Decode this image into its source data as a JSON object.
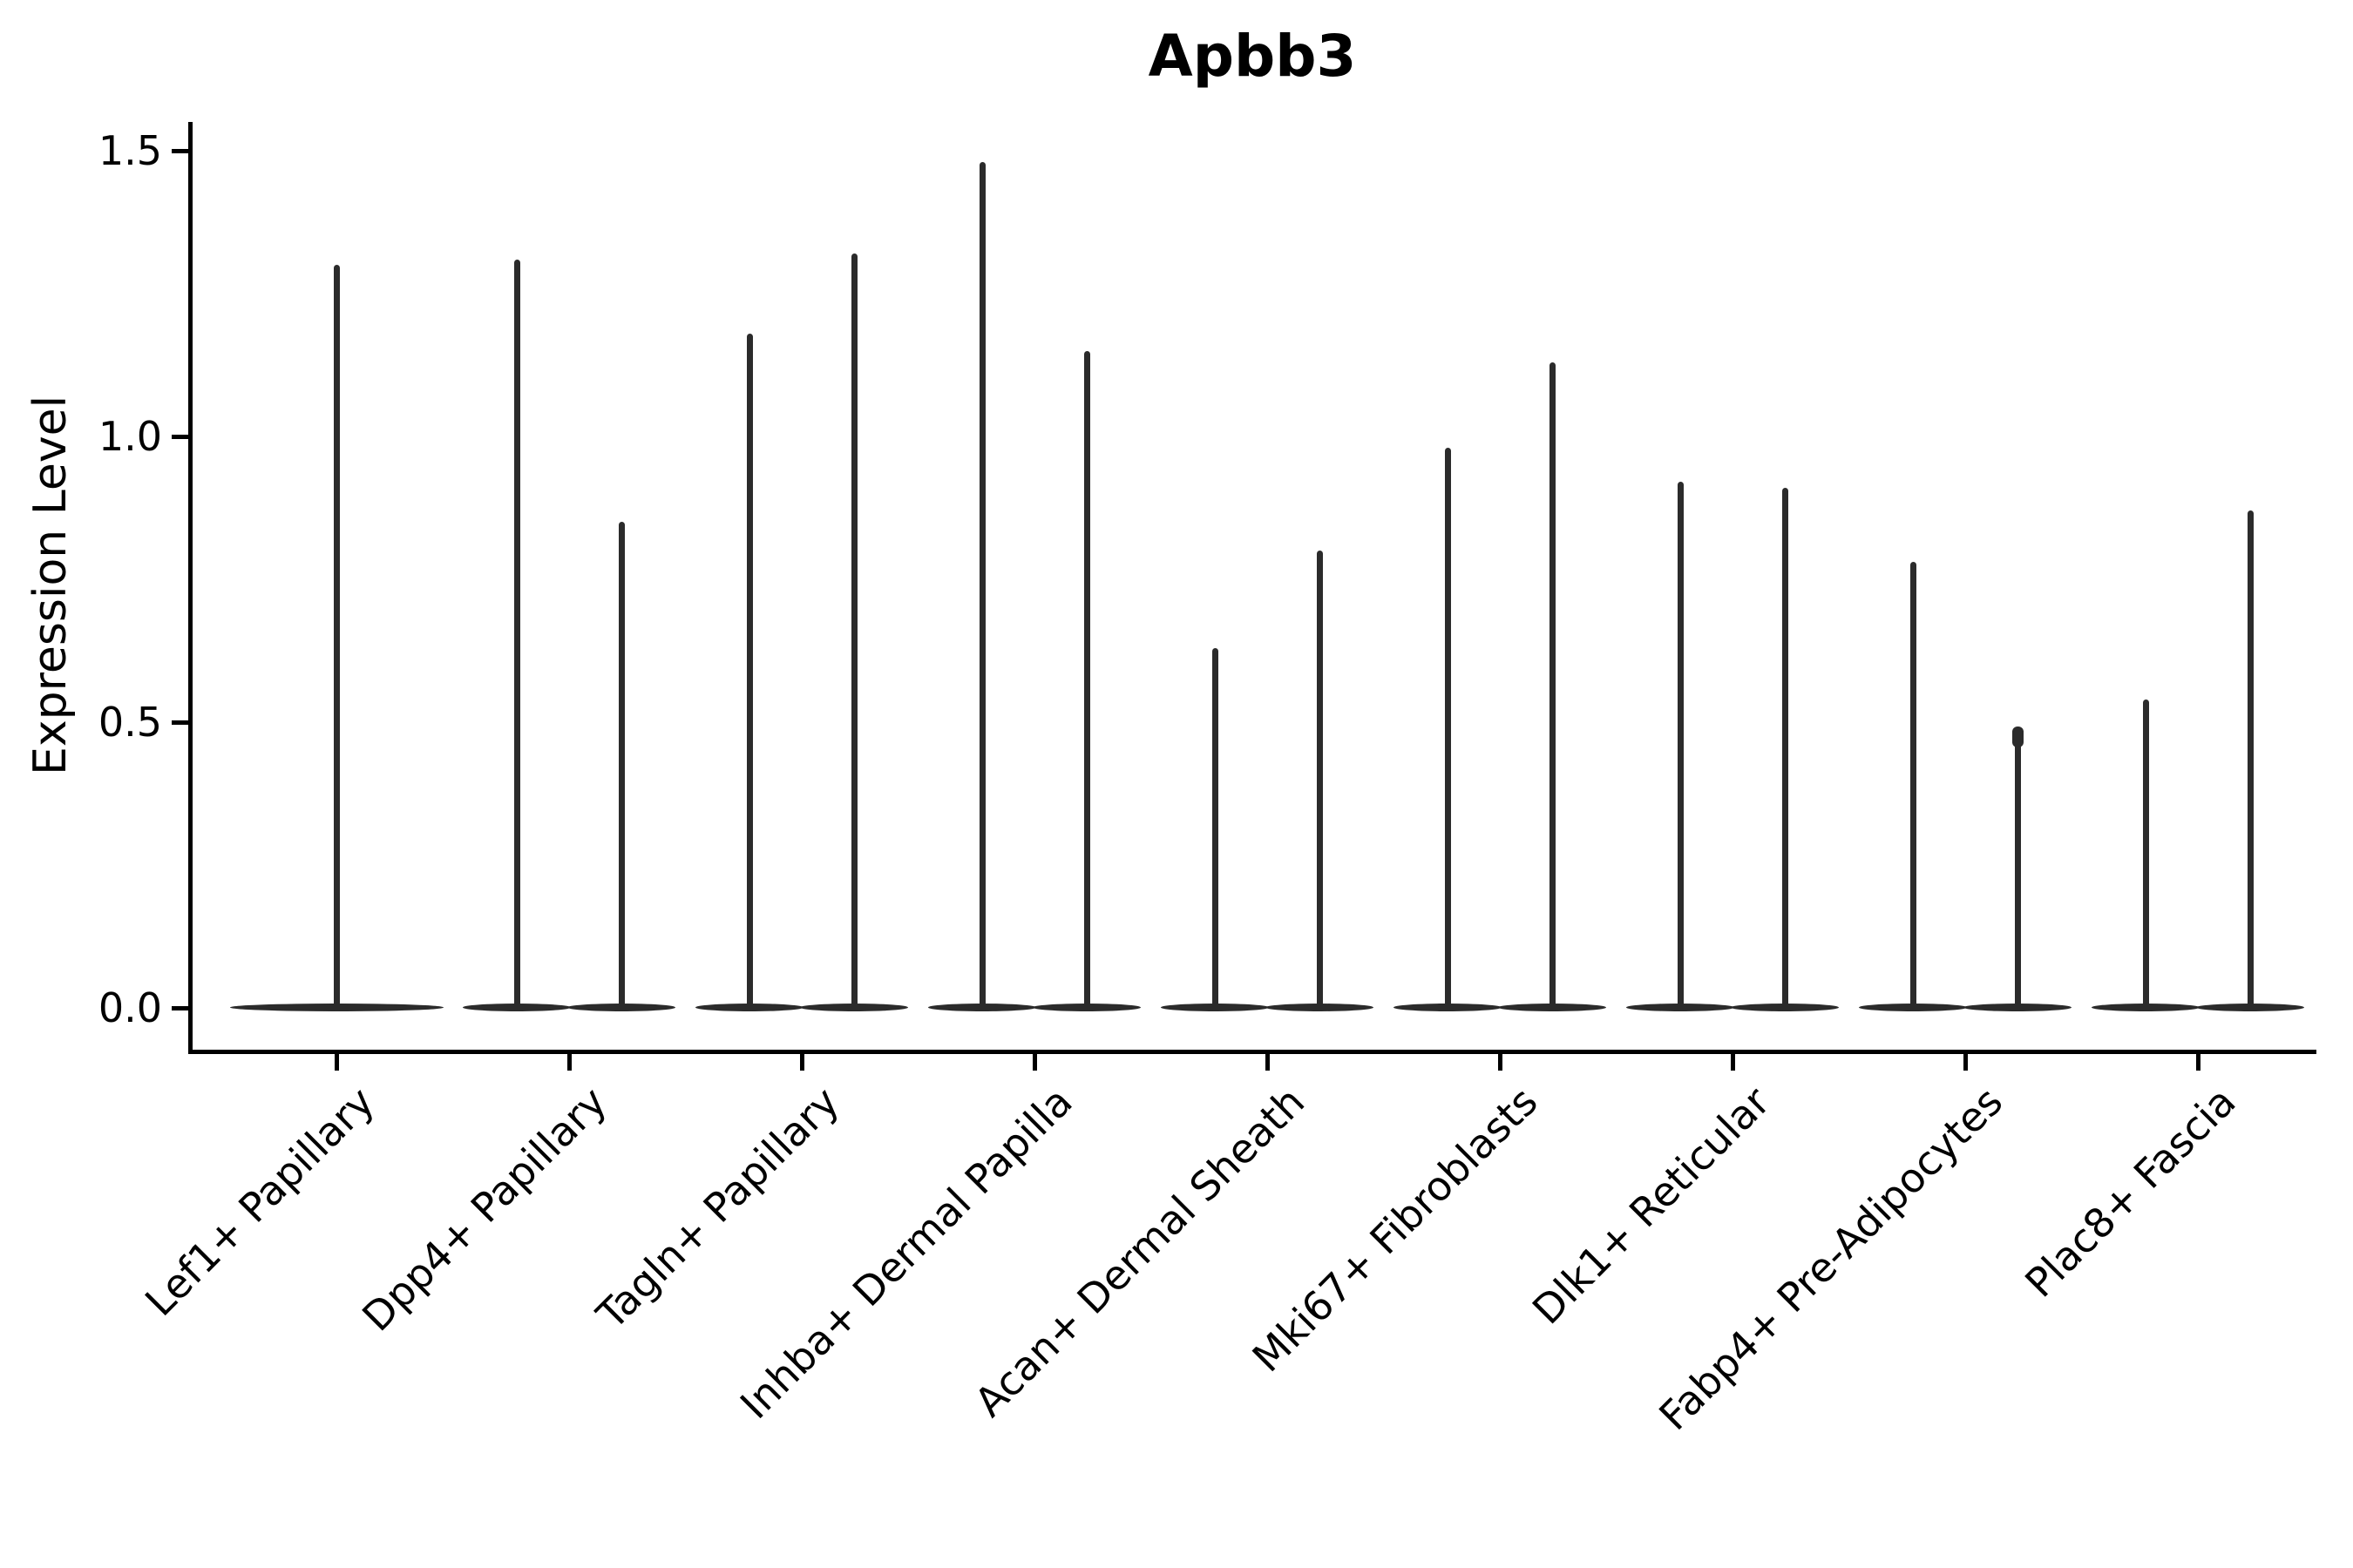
{
  "title": "Apbb3",
  "y_axis": {
    "label": "Expression Level",
    "tick_labels": [
      "0.0",
      "0.5",
      "1.0",
      "1.5"
    ]
  },
  "chart_data": {
    "type": "violin",
    "title": "Apbb3",
    "xlabel": "",
    "ylabel": "Expression Level",
    "ylim": [
      0,
      1.55
    ],
    "yticks": [
      0.0,
      0.5,
      1.0,
      1.5
    ],
    "grid": false,
    "legend": "none",
    "background": "#ffffff",
    "violin_color": "#2b2b2b",
    "axis_color": "#000000",
    "description": "Single-cell expression violin plot. Each category shows violins that are flat and wide at 0 (most cells have zero expression) with thin vertical spikes reaching the maximum expression value. All categories except the first contain two adjacent violins.",
    "categories": [
      "Lef1+ Papillary",
      "Dpp4+ Papillary",
      "Tagln+ Papillary",
      "Inhba+ Dermal Papilla",
      "Acan+ Dermal Sheath",
      "Mki67+ Fibroblasts",
      "Dlk1+ Reticular",
      "Fabp4+ Pre-Adipocytes",
      "Plac8+ Fascia"
    ],
    "violins": [
      {
        "category": "Lef1+ Papillary",
        "maxima": [
          1.3
        ],
        "mode_at_zero": true
      },
      {
        "category": "Dpp4+ Papillary",
        "maxima": [
          1.31,
          0.85
        ],
        "mode_at_zero": true
      },
      {
        "category": "Tagln+ Papillary",
        "maxima": [
          1.18,
          1.32
        ],
        "mode_at_zero": true
      },
      {
        "category": "Inhba+ Dermal Papilla",
        "maxima": [
          1.48,
          1.15
        ],
        "mode_at_zero": true
      },
      {
        "category": "Acan+ Dermal Sheath",
        "maxima": [
          0.63,
          0.8
        ],
        "mode_at_zero": true
      },
      {
        "category": "Mki67+ Fibroblasts",
        "maxima": [
          0.98,
          1.13
        ],
        "mode_at_zero": true
      },
      {
        "category": "Dlk1+ Reticular",
        "maxima": [
          0.92,
          0.91
        ],
        "mode_at_zero": true
      },
      {
        "category": "Fabp4+ Pre-Adipocytes",
        "maxima": [
          0.78,
          0.49
        ],
        "mode_at_zero": true,
        "bulge_top_right": true
      },
      {
        "category": "Plac8+ Fascia",
        "maxima": [
          0.54,
          0.87
        ],
        "mode_at_zero": true
      }
    ]
  }
}
